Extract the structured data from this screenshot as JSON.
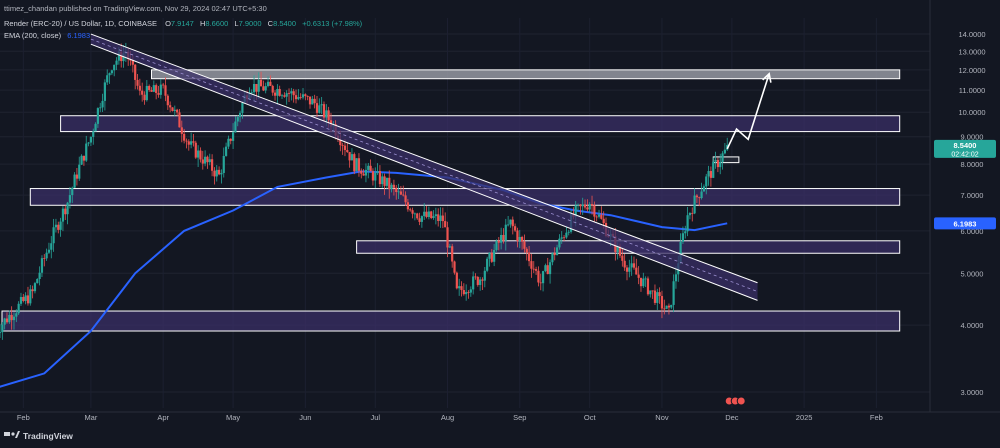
{
  "header": {
    "publisher_line": "ttimez_chandan published on TradingView.com, Nov 29, 2024 02:47 UTC+5:30",
    "symbol_title": "Render (ERC-20) / US Dollar, 1D, COINBASE",
    "ohlc": {
      "open_label": "O",
      "open": "7.9147",
      "high_label": "H",
      "high": "8.6600",
      "low_label": "L",
      "low": "7.9000",
      "close_label": "C",
      "close": "8.5400",
      "change": "+0.6313 (+7.98%)"
    },
    "ema_label": "EMA (200, close)",
    "ema_value": "6.1983"
  },
  "footer": {
    "brand": "TradingView"
  },
  "colors": {
    "background": "#131722",
    "bull": "#26a69a",
    "bear": "#ef5350",
    "ema": "#2962ff",
    "zone_fill": "#3a2f66",
    "zone_stroke": "#ffffff",
    "upper_zone_fill": "#9598a1",
    "last_price_badge": "#26a69a",
    "ema_badge": "#2962ff"
  },
  "chart_data": {
    "type": "candlestick",
    "x_axis": {
      "labels": [
        "Feb",
        "Mar",
        "Apr",
        "May",
        "Jun",
        "Jul",
        "Aug",
        "Sep",
        "Oct",
        "Nov",
        "Dec",
        "2025",
        "Feb"
      ],
      "dates": [
        "2024-02-01",
        "2024-03-01",
        "2024-04-01",
        "2024-05-01",
        "2024-06-01",
        "2024-07-01",
        "2024-08-01",
        "2024-09-01",
        "2024-10-01",
        "2024-11-01",
        "2024-12-01",
        "2025-01-01",
        "2025-02-01"
      ]
    },
    "y_axis": {
      "scale": "log",
      "ticks": [
        "14.0000",
        "13.0000",
        "12.0000",
        "11.0000",
        "10.0000",
        "9.0000",
        "8.0000",
        "7.0000",
        "6.0000",
        "5.0000",
        "4.0000",
        "3.0000"
      ],
      "range": [
        2.8,
        15.0
      ]
    },
    "last_price": {
      "value": "8.5400",
      "countdown": "02:42:02"
    },
    "ema_last": "6.1983",
    "series": [
      {
        "name": "EMA (200, close)",
        "type": "line",
        "points": [
          [
            "2024-01-20",
            3.05
          ],
          [
            "2024-02-10",
            3.25
          ],
          [
            "2024-03-01",
            3.9
          ],
          [
            "2024-03-20",
            5.0
          ],
          [
            "2024-04-10",
            6.0
          ],
          [
            "2024-05-01",
            6.55
          ],
          [
            "2024-05-20",
            7.25
          ],
          [
            "2024-06-10",
            7.55
          ],
          [
            "2024-06-25",
            7.75
          ],
          [
            "2024-07-10",
            7.7
          ],
          [
            "2024-08-01",
            7.55
          ],
          [
            "2024-08-25",
            7.15
          ],
          [
            "2024-09-10",
            6.75
          ],
          [
            "2024-09-25",
            6.55
          ],
          [
            "2024-10-10",
            6.42
          ],
          [
            "2024-11-01",
            6.1
          ],
          [
            "2024-11-15",
            6.02
          ],
          [
            "2024-11-29",
            6.2
          ]
        ]
      }
    ],
    "candles_monthly_path": [
      [
        "2024-01-20",
        3.9
      ],
      [
        "2024-02-05",
        4.6
      ],
      [
        "2024-02-20",
        6.8
      ],
      [
        "2024-03-01",
        9.0
      ],
      [
        "2024-03-10",
        12.3
      ],
      [
        "2024-03-16",
        13.0
      ],
      [
        "2024-03-22",
        10.8
      ],
      [
        "2024-04-01",
        11.0
      ],
      [
        "2024-04-12",
        8.7
      ],
      [
        "2024-04-25",
        7.6
      ],
      [
        "2024-05-08",
        11.2
      ],
      [
        "2024-05-22",
        11.0
      ],
      [
        "2024-06-05",
        10.4
      ],
      [
        "2024-06-12",
        9.6
      ],
      [
        "2024-06-22",
        8.0
      ],
      [
        "2024-07-05",
        7.4
      ],
      [
        "2024-07-20",
        6.4
      ],
      [
        "2024-07-30",
        6.3
      ],
      [
        "2024-08-05",
        4.6
      ],
      [
        "2024-08-15",
        4.9
      ],
      [
        "2024-08-28",
        6.2
      ],
      [
        "2024-09-10",
        4.8
      ],
      [
        "2024-09-25",
        6.5
      ],
      [
        "2024-10-01",
        6.8
      ],
      [
        "2024-10-15",
        5.3
      ],
      [
        "2024-11-04",
        4.2
      ],
      [
        "2024-11-12",
        6.4
      ],
      [
        "2024-11-20",
        7.5
      ],
      [
        "2024-11-29",
        8.54
      ]
    ],
    "annotations": {
      "horizontal_zones": [
        {
          "low": 11.55,
          "high": 12.0,
          "from": "2024-03-27",
          "to": "2025-02-11",
          "style": "upper"
        },
        {
          "low": 9.2,
          "high": 9.85,
          "from": "2024-02-17",
          "to": "2025-02-11",
          "style": "zone"
        },
        {
          "low": 6.7,
          "high": 7.2,
          "from": "2024-02-04",
          "to": "2025-02-11",
          "style": "zone"
        },
        {
          "low": 5.45,
          "high": 5.75,
          "from": "2024-06-23",
          "to": "2025-02-11",
          "style": "zone"
        },
        {
          "low": 3.9,
          "high": 4.25,
          "from": "2024-01-22",
          "to": "2025-02-11",
          "style": "zone"
        },
        {
          "low": 8.05,
          "high": 8.25,
          "from": "2024-11-23",
          "to": "2024-12-04",
          "style": "small"
        }
      ],
      "descending_channel": {
        "start": "2024-03-01",
        "end": "2024-12-12",
        "upper_start": 14.0,
        "upper_end": 4.8,
        "lower_start": 13.4,
        "lower_end": 4.45
      },
      "projection_arrow": [
        [
          "2024-11-29",
          8.54
        ],
        [
          "2024-12-03",
          9.3
        ],
        [
          "2024-12-08",
          8.9
        ],
        [
          "2024-12-17",
          11.8
        ]
      ]
    }
  }
}
